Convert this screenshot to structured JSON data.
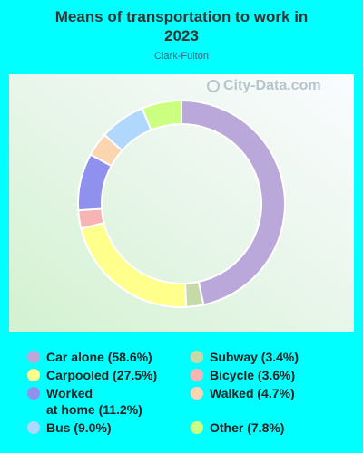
{
  "header": {
    "title_line1": "Means of transportation to work in",
    "title_line2": "2023",
    "subtitle": "Clark-Fulton"
  },
  "watermark": {
    "text": "City-Data.com",
    "icon": "city-data-logo-icon"
  },
  "chart_data": {
    "type": "pie",
    "variant": "donut",
    "title": "Means of transportation to work in 2023",
    "subtitle": "Clark-Fulton",
    "slices": [
      {
        "label": "Car alone",
        "value": 58.6,
        "color": "#bba8db"
      },
      {
        "label": "Subway",
        "value": 3.4,
        "color": "#c8d9a8"
      },
      {
        "label": "Carpooled",
        "value": 27.5,
        "color": "#ffff8c"
      },
      {
        "label": "Bicycle",
        "value": 3.6,
        "color": "#f8b4b4"
      },
      {
        "label": "Worked\nat home",
        "value": 11.2,
        "color": "#9090ee"
      },
      {
        "label": "Walked",
        "value": 4.7,
        "color": "#fbd4b0"
      },
      {
        "label": "Bus",
        "value": 9.0,
        "color": "#b0d8fc"
      },
      {
        "label": "Other",
        "value": 7.8,
        "color": "#ccff80"
      }
    ],
    "legend_position": "bottom"
  },
  "legend": {
    "items": [
      {
        "text": "Car alone (58.6%)",
        "color": "#bba8db"
      },
      {
        "text": "Carpooled (27.5%)",
        "color": "#ffff8c"
      },
      {
        "text": "Worked\nat home (11.2%)",
        "color": "#9090ee"
      },
      {
        "text": "Bus (9.0%)",
        "color": "#b0d8fc"
      },
      {
        "text": "Subway (3.4%)",
        "color": "#c8d9a8"
      },
      {
        "text": "Bicycle (3.6%)",
        "color": "#f8b4b4"
      },
      {
        "text": "Walked (4.7%)",
        "color": "#fbd4b0"
      },
      {
        "text": "Other (7.8%)",
        "color": "#ccff80"
      }
    ]
  }
}
